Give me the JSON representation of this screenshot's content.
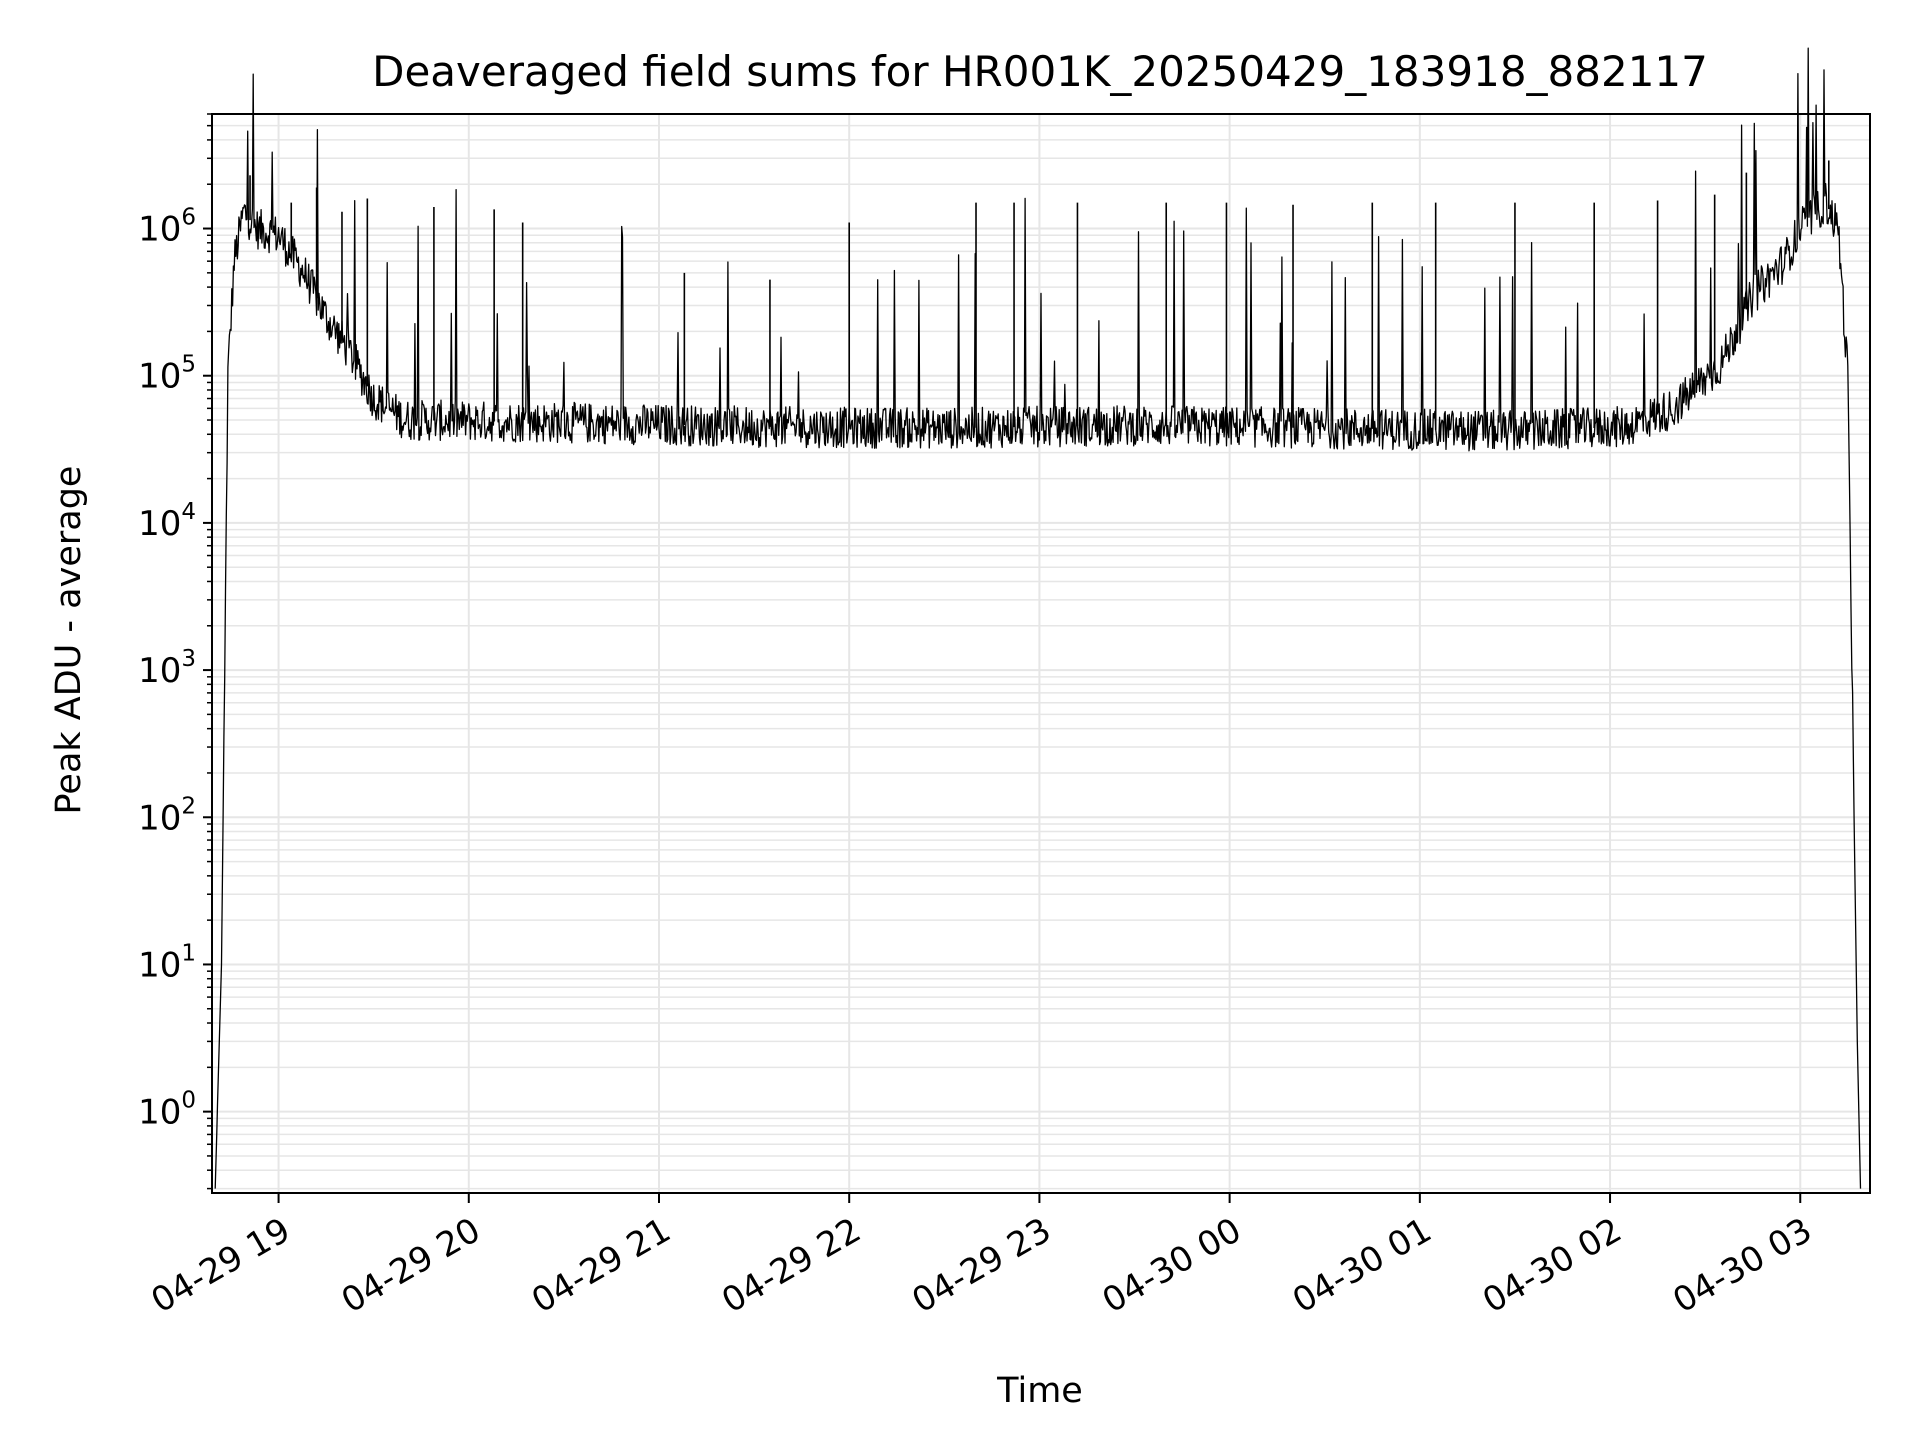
{
  "chart_data": {
    "type": "line",
    "title": "Deaveraged field sums for HR001K_20250429_183918_882117",
    "xlabel": "Time",
    "ylabel": "Peak ADU - average",
    "yscale": "log",
    "ylim": [
      0.28,
      6000000
    ],
    "xlim": [
      "2025-04-29 18:39",
      "2025-04-30 03:22"
    ],
    "x_ticks": [
      "2025-04-29 19:00",
      "2025-04-29 20:00",
      "2025-04-29 21:00",
      "2025-04-29 22:00",
      "2025-04-29 23:00",
      "2025-04-30 00:00",
      "2025-04-30 01:00",
      "2025-04-30 02:00",
      "2025-04-30 03:00"
    ],
    "x_tick_labels": [
      "04-29 19",
      "04-29 20",
      "04-29 21",
      "04-29 22",
      "04-29 23",
      "04-30 00",
      "04-30 01",
      "04-30 02",
      "04-30 03"
    ],
    "x_tick_rotation_deg": 30,
    "y_ticks": [
      {
        "value": 1,
        "base": "10",
        "exp": "0"
      },
      {
        "value": 10,
        "base": "10",
        "exp": "1"
      },
      {
        "value": 100,
        "base": "10",
        "exp": "2"
      },
      {
        "value": 1000,
        "base": "10",
        "exp": "3"
      },
      {
        "value": 10000,
        "base": "10",
        "exp": "4"
      },
      {
        "value": 100000,
        "base": "10",
        "exp": "5"
      },
      {
        "value": 1000000,
        "base": "10",
        "exp": "6"
      }
    ],
    "grid": true,
    "line_color": "#000000",
    "grid_color": "#e6e6e6",
    "series": [
      {
        "baseline": [
          [
            "2025-04-29 18:40",
            0.3
          ],
          [
            "2025-04-29 18:42",
            10
          ],
          [
            "2025-04-29 18:44",
            100000
          ],
          [
            "2025-04-29 18:46",
            600000
          ],
          [
            "2025-04-29 18:49",
            1300000
          ],
          [
            "2025-04-29 18:53",
            1000000
          ],
          [
            "2025-04-29 19:00",
            900000
          ],
          [
            "2025-04-29 19:08",
            500000
          ],
          [
            "2025-04-29 19:15",
            250000
          ],
          [
            "2025-04-29 19:22",
            150000
          ],
          [
            "2025-04-29 19:30",
            70000
          ],
          [
            "2025-04-29 19:40",
            50000
          ],
          [
            "2025-04-29 20:30",
            48000
          ],
          [
            "2025-04-29 21:30",
            45000
          ],
          [
            "2025-04-29 22:30",
            44000
          ],
          [
            "2025-04-29 23:30",
            46000
          ],
          [
            "2025-04-30 00:30",
            44000
          ],
          [
            "2025-04-30 01:30",
            42000
          ],
          [
            "2025-04-30 02:05",
            45000
          ],
          [
            "2025-04-30 02:20",
            60000
          ],
          [
            "2025-04-30 02:35",
            120000
          ],
          [
            "2025-04-30 02:45",
            350000
          ],
          [
            "2025-04-30 02:55",
            600000
          ],
          [
            "2025-04-30 03:00",
            1000000
          ],
          [
            "2025-04-30 03:08",
            1500000
          ],
          [
            "2025-04-30 03:12",
            1000000
          ],
          [
            "2025-04-30 03:15",
            100000
          ],
          [
            "2025-04-30 03:18",
            3
          ],
          [
            "2025-04-30 03:19",
            0.3
          ]
        ],
        "spikes": [
          [
            "2025-04-29 18:51",
            2300000
          ],
          [
            "2025-04-29 19:04",
            1500000
          ],
          [
            "2025-04-29 19:12",
            1900000
          ],
          [
            "2025-04-29 19:20",
            1300000
          ],
          [
            "2025-04-29 19:28",
            1600000
          ],
          [
            "2025-04-29 19:49",
            1400000
          ],
          [
            "2025-04-29 20:08",
            1350000
          ],
          [
            "2025-04-29 20:17",
            1100000
          ],
          [
            "2025-04-29 21:08",
            500000
          ],
          [
            "2025-04-29 21:35",
            450000
          ],
          [
            "2025-04-29 22:00",
            1100000
          ],
          [
            "2025-04-29 22:40",
            1500000
          ],
          [
            "2025-04-29 22:52",
            1500000
          ],
          [
            "2025-04-29 23:12",
            1500000
          ],
          [
            "2025-04-29 23:40",
            1500000
          ],
          [
            "2025-04-29 23:59",
            1500000
          ],
          [
            "2025-04-30 00:20",
            1450000
          ],
          [
            "2025-04-30 00:45",
            1500000
          ],
          [
            "2025-04-30 01:05",
            1500000
          ],
          [
            "2025-04-30 01:30",
            1500000
          ],
          [
            "2025-04-30 01:55",
            1500000
          ],
          [
            "2025-04-30 02:15",
            1550000
          ],
          [
            "2025-04-30 02:33",
            1700000
          ],
          [
            "2025-04-30 02:43",
            2400000
          ],
          [
            "2025-04-30 03:09",
            2900000
          ]
        ]
      }
    ]
  }
}
